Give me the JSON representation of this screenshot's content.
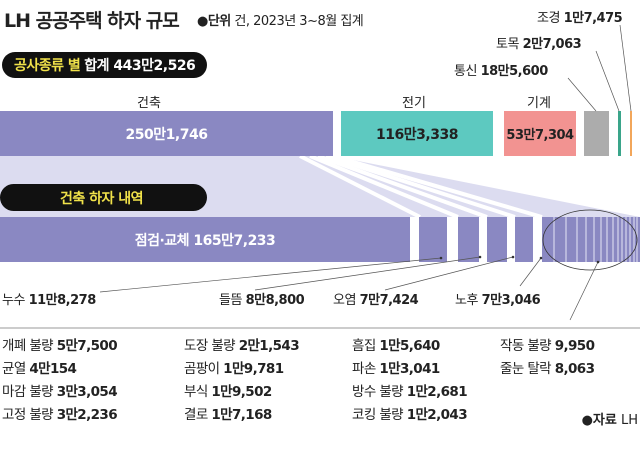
{
  "header": {
    "title": "LH 공공주택 하자 규모",
    "unit_label": "●단위",
    "unit_text": "건, 2023년 3~8월 집계"
  },
  "colors": {
    "architecture": "#8a88c2",
    "electric": "#5dc9c0",
    "mechanical": "#f29391",
    "telecom": "#acacac",
    "civil": "#3aa58a",
    "landscape": "#f2a65a",
    "fan": "#dcdcf0",
    "pill": "#111111",
    "highlight": "#f1e24a"
  },
  "chart_data": [
    {
      "type": "bar",
      "orientation": "horizontal-stacked",
      "title_highlight": "공사종류 별",
      "title": "합계 443만2,526",
      "categories": [
        "건축",
        "전기",
        "기계",
        "통신",
        "토목",
        "조경"
      ],
      "values": [
        2501746,
        1163338,
        537304,
        185600,
        27063,
        17475
      ],
      "value_labels": [
        "250만1,746",
        "116만3,338",
        "53만7,304",
        "18만5,600",
        "2만7,063",
        "1만7,475"
      ]
    },
    {
      "type": "bar",
      "orientation": "horizontal-stacked",
      "title": "건축 하자 내역",
      "categories": [
        "점검·교체",
        "누수",
        "들뜸",
        "오염",
        "노후",
        "개폐 불량",
        "균열",
        "마감 불량",
        "고정 불량",
        "도장 불량",
        "곰팡이",
        "부식",
        "결로",
        "흠집",
        "파손",
        "방수 불량",
        "코킹 불량",
        "작동 불량",
        "줄눈 탈락"
      ],
      "values": [
        1657233,
        118278,
        88800,
        77424,
        73046,
        57500,
        40154,
        33054,
        32236,
        21543,
        19781,
        19502,
        17168,
        15640,
        13041,
        12681,
        12043,
        9950,
        8063
      ],
      "value_labels": [
        "165만7,233",
        "11만8,278",
        "8만8,800",
        "7만7,424",
        "7만3,046",
        "5만7,500",
        "4만154",
        "3만3,054",
        "3만2,236",
        "2만1,543",
        "1만9,781",
        "1만9,502",
        "1만7,168",
        "1만5,640",
        "1만3,041",
        "1만2,681",
        "1만2,043",
        "9,950",
        "8,063"
      ]
    }
  ],
  "source": {
    "label": "●자료",
    "text": "LH"
  }
}
